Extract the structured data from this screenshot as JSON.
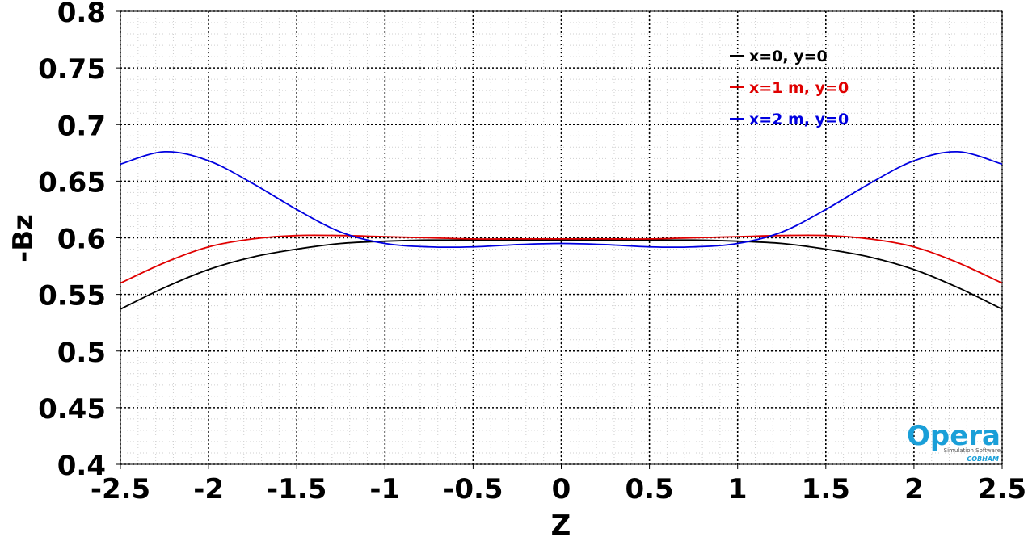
{
  "chart_data": {
    "type": "line",
    "title": "",
    "xlabel": "Z",
    "ylabel": "-Bz",
    "xlim": [
      -2.5,
      2.5
    ],
    "ylim": [
      0.4,
      0.8
    ],
    "grid": true,
    "legend_position": "top-right",
    "x_ticks": [
      "-2.5",
      "-2",
      "-1.5",
      "-1",
      "-0.5",
      "0",
      "0.5",
      "1",
      "1.5",
      "2",
      "2.5"
    ],
    "y_ticks": [
      "0.4",
      "0.45",
      "0.5",
      "0.55",
      "0.6",
      "0.65",
      "0.7",
      "0.75",
      "0.8"
    ],
    "series": [
      {
        "name": "x=0, y=0",
        "color": "#000000",
        "x": [
          -2.5,
          -2.25,
          -2.0,
          -1.75,
          -1.5,
          -1.25,
          -1.0,
          -0.75,
          -0.5,
          -0.25,
          0.0,
          0.25,
          0.5,
          0.75,
          1.0,
          1.25,
          1.5,
          1.75,
          2.0,
          2.25,
          2.5
        ],
        "y": [
          0.537,
          0.556,
          0.572,
          0.583,
          0.59,
          0.595,
          0.597,
          0.598,
          0.598,
          0.598,
          0.598,
          0.598,
          0.598,
          0.598,
          0.597,
          0.595,
          0.59,
          0.583,
          0.572,
          0.556,
          0.537
        ]
      },
      {
        "name": "x=1 m, y=0",
        "color": "#e00000",
        "x": [
          -2.5,
          -2.25,
          -2.0,
          -1.75,
          -1.5,
          -1.25,
          -1.0,
          -0.75,
          -0.5,
          -0.25,
          0.0,
          0.25,
          0.5,
          0.75,
          1.0,
          1.25,
          1.5,
          1.75,
          2.0,
          2.25,
          2.5
        ],
        "y": [
          0.56,
          0.578,
          0.592,
          0.599,
          0.602,
          0.602,
          0.601,
          0.6,
          0.599,
          0.599,
          0.599,
          0.599,
          0.599,
          0.6,
          0.601,
          0.602,
          0.602,
          0.599,
          0.592,
          0.578,
          0.56
        ]
      },
      {
        "name": "x=2 m, y=0",
        "color": "#0000e0",
        "x": [
          -2.5,
          -2.25,
          -2.0,
          -1.75,
          -1.5,
          -1.25,
          -1.0,
          -0.75,
          -0.5,
          -0.25,
          0.0,
          0.25,
          0.5,
          0.75,
          1.0,
          1.25,
          1.5,
          1.75,
          2.0,
          2.25,
          2.5
        ],
        "y": [
          0.665,
          0.676,
          0.668,
          0.648,
          0.625,
          0.605,
          0.595,
          0.592,
          0.592,
          0.594,
          0.595,
          0.594,
          0.592,
          0.592,
          0.595,
          0.605,
          0.625,
          0.648,
          0.668,
          0.676,
          0.665
        ]
      }
    ]
  },
  "logo": {
    "name": "Opera",
    "subtitle": "Simulation Software",
    "company": "COBHAM",
    "color": "#1a9fd8"
  }
}
